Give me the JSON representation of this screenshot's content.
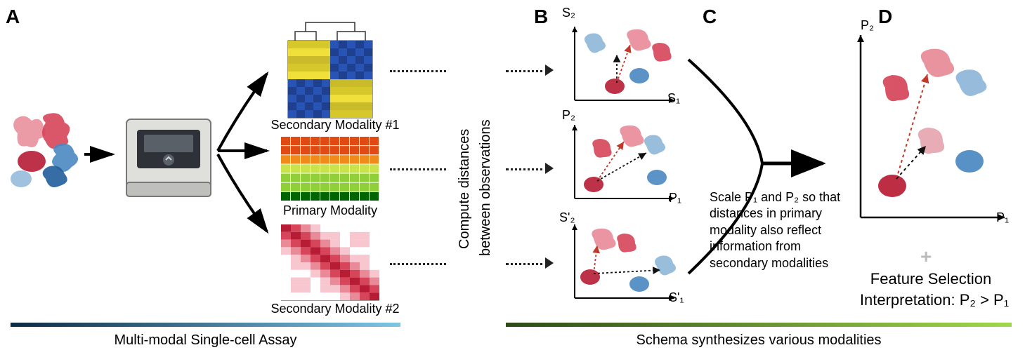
{
  "panels": {
    "A": "A",
    "B": "B",
    "C": "C",
    "D": "D"
  },
  "labels": {
    "sec1": "Secondary Modality #1",
    "primary": "Primary Modality",
    "sec2": "Secondary Modality #2",
    "leftCaption": "Multi-modal Single-cell Assay",
    "rightCaption": "Schema synthesizes various modalities",
    "vert1": "Compute distances",
    "vert2": "between observations",
    "desc": "Scale P₁ and P₂ so that distances in primary modality also reflect information from secondary modalities",
    "featSel": "Feature Selection",
    "interp": "Interpretation: P₂ > P₁",
    "plus": "+"
  },
  "axes": {
    "b_top_x": "S₁",
    "b_top_y": "S₂",
    "b_mid_x": "P₁",
    "b_mid_y": "P₂",
    "b_bot_x": "S'₁",
    "b_bot_y": "S'₂",
    "d_x": "P₁",
    "d_y": "P₂"
  },
  "palettes": {
    "heatmap1": {
      "type": "heatmap",
      "colors": [
        "#1f3f8f",
        "#2855b5",
        "#d6c72a",
        "#f2e03a",
        "#c9bb2a"
      ],
      "grid": 10,
      "cluster_split": 5,
      "bg": "#ffffff",
      "border": "#222"
    },
    "heatmap_primary": {
      "type": "heatmap",
      "rows": 7,
      "cols": 10,
      "colors": [
        "#006400",
        "#178a1c",
        "#4cb02d",
        "#8ecf3a",
        "#c8e34c",
        "#f8e83a",
        "#f9c02d",
        "#f08a1a",
        "#e24a14",
        "#c51111"
      ],
      "bg": "#ffffff"
    },
    "heatmap2": {
      "type": "heatmap",
      "grid": 10,
      "colors": [
        "#ffffff",
        "#f7c6ce",
        "#e88a97",
        "#d6455a",
        "#b71c35"
      ],
      "bg": "#ffffff"
    }
  },
  "cells": {
    "red": [
      "#e88a97",
      "#d6455a",
      "#b71c35"
    ],
    "blue": [
      "#8fb7d9",
      "#4a88c1",
      "#1f5d9a"
    ]
  },
  "sequencer": {
    "body": "#dfdfdc",
    "front": "#2e3238",
    "screen": "#5a6068",
    "accent": "#222222"
  },
  "underlines": {
    "left": {
      "from": "#0b2a45",
      "to": "#7ec5e6"
    },
    "right": {
      "from": "#2d4a17",
      "to": "#9fd94a"
    }
  },
  "arrows": {
    "dotted_color": "#222",
    "solid_color": "#000"
  },
  "fonts": {
    "panel_label": 28,
    "region_label": 22,
    "small_label": 18,
    "caption": 20
  }
}
